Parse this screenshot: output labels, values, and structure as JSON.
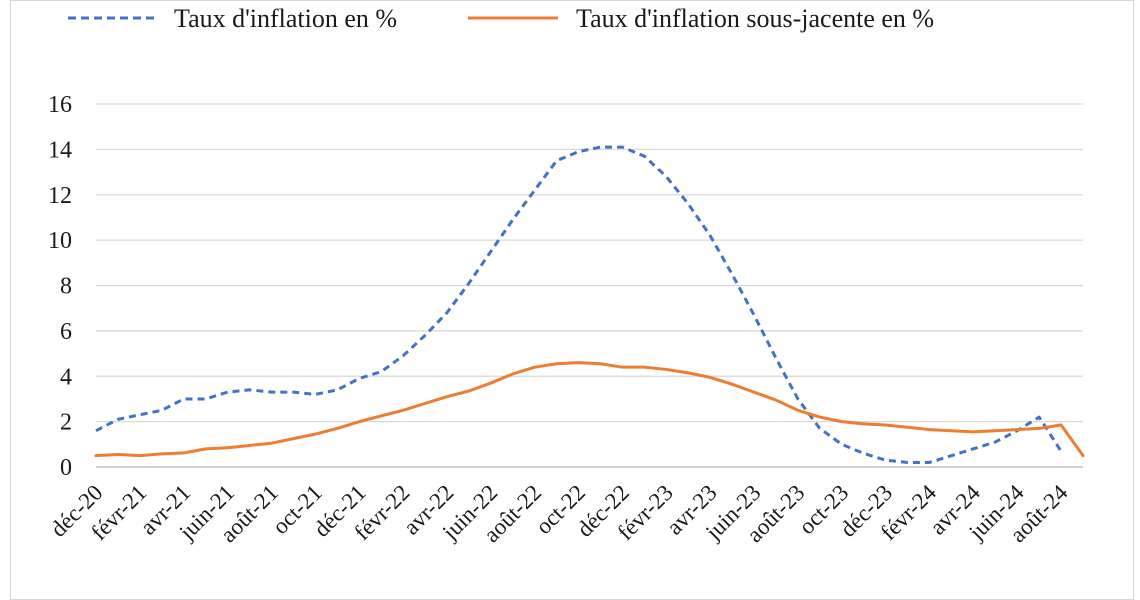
{
  "chart_data": {
    "type": "line",
    "title": "",
    "xlabel": "",
    "ylabel": "",
    "ylim": [
      0,
      16
    ],
    "yticks": [
      "0",
      "2",
      "4",
      "6",
      "8",
      "10",
      "12",
      "14",
      "16"
    ],
    "grid": true,
    "legend_position": "top",
    "x": [
      "déc-20",
      "janv-21",
      "févr-21",
      "mars-21",
      "avr-21",
      "mai-21",
      "juin-21",
      "juil-21",
      "août-21",
      "sept-21",
      "oct-21",
      "nov-21",
      "déc-21",
      "janv-22",
      "févr-22",
      "mars-22",
      "avr-22",
      "mai-22",
      "juin-22",
      "juil-22",
      "août-22",
      "sept-22",
      "oct-22",
      "nov-22",
      "déc-22",
      "janv-23",
      "févr-23",
      "mars-23",
      "avr-23",
      "mai-23",
      "juin-23",
      "juil-23",
      "août-23",
      "sept-23",
      "oct-23",
      "nov-23",
      "déc-23",
      "janv-24",
      "févr-24",
      "mars-24",
      "avr-24",
      "mai-24",
      "juin-24",
      "juil-24",
      "août-24",
      "sept-24"
    ],
    "xtick_labels": [
      "déc-20",
      "févr-21",
      "avr-21",
      "juin-21",
      "août-21",
      "oct-21",
      "déc-21",
      "févr-22",
      "avr-22",
      "juin-22",
      "août-22",
      "oct-22",
      "déc-22",
      "févr-23",
      "avr-23",
      "juin-23",
      "août-23",
      "oct-23",
      "déc-23",
      "févr-24",
      "avr-24",
      "juin-24",
      "août-24"
    ],
    "series": [
      {
        "name": "Taux d'inflation en %",
        "color": "#4472c4",
        "style": "dashed",
        "values": [
          1.6,
          2.1,
          2.3,
          2.5,
          3.0,
          3.0,
          3.3,
          3.4,
          3.3,
          3.3,
          3.2,
          3.4,
          3.9,
          4.2,
          4.9,
          5.8,
          6.8,
          8.1,
          9.5,
          10.9,
          12.2,
          13.5,
          13.9,
          14.1,
          14.1,
          13.7,
          12.8,
          11.6,
          10.2,
          8.5,
          6.7,
          4.8,
          3.0,
          1.7,
          1.0,
          0.6,
          0.3,
          0.2,
          0.2,
          0.5,
          0.8,
          1.1,
          1.6,
          2.2,
          0.7,
          null
        ]
      },
      {
        "name": "Taux d'inflation sous-jacente en %",
        "color": "#ed7d31",
        "style": "solid",
        "values": [
          0.5,
          0.55,
          0.5,
          0.58,
          0.62,
          0.8,
          0.85,
          0.95,
          1.05,
          1.25,
          1.45,
          1.7,
          2.0,
          2.25,
          2.5,
          2.8,
          3.1,
          3.35,
          3.7,
          4.1,
          4.4,
          4.55,
          4.6,
          4.55,
          4.4,
          4.4,
          4.3,
          4.15,
          3.95,
          3.65,
          3.3,
          2.95,
          2.5,
          2.2,
          2.0,
          1.9,
          1.85,
          1.75,
          1.65,
          1.6,
          1.55,
          1.6,
          1.65,
          1.7,
          1.85,
          0.5
        ]
      }
    ]
  }
}
